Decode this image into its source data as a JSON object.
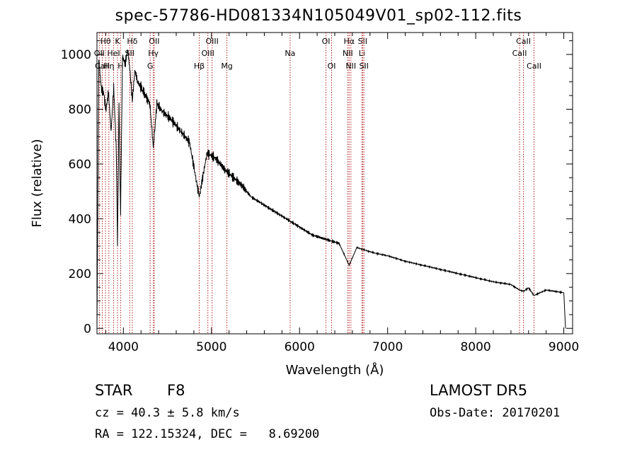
{
  "chart_data": {
    "type": "line",
    "title": "spec-57786-HD081334N105049V01_sp02-112.fits",
    "xlabel": "Wavelength (Å)",
    "ylabel": "Flux (relative)",
    "xlim": [
      3700,
      9100
    ],
    "ylim": [
      -20,
      1080
    ],
    "xticks": [
      4000,
      5000,
      6000,
      7000,
      8000,
      9000
    ],
    "yticks": [
      0,
      200,
      400,
      600,
      800,
      1000
    ],
    "grid": false,
    "line_color": "#000000",
    "marker_color": "#b22222",
    "series": [
      {
        "x": [
          3700,
          3720,
          3750,
          3780,
          3800,
          3830,
          3860,
          3890,
          3920,
          3933,
          3950,
          3968,
          3990,
          4020,
          4050,
          4080,
          4101,
          4130,
          4160,
          4200,
          4250,
          4300,
          4340,
          4380,
          4450,
          4550,
          4650,
          4750,
          4861,
          4950,
          5050,
          5150,
          5250,
          5350,
          5450,
          5550,
          5650,
          5750,
          5850,
          5950,
          6050,
          6150,
          6250,
          6350,
          6450,
          6563,
          6650,
          6750,
          6850,
          7000,
          7200,
          7400,
          7600,
          7800,
          8000,
          8200,
          8400,
          8498,
          8542,
          8600,
          8662,
          8800,
          9000,
          9020
        ],
        "y": [
          0,
          980,
          880,
          850,
          800,
          860,
          720,
          880,
          640,
          300,
          820,
          420,
          1000,
          960,
          1020,
          920,
          830,
          940,
          900,
          880,
          850,
          820,
          660,
          820,
          790,
          760,
          720,
          680,
          480,
          640,
          620,
          580,
          550,
          520,
          480,
          460,
          440,
          420,
          400,
          380,
          360,
          340,
          330,
          320,
          310,
          230,
          295,
          285,
          275,
          265,
          245,
          230,
          215,
          200,
          185,
          170,
          160,
          140,
          135,
          148,
          120,
          140,
          130,
          0
        ]
      }
    ],
    "line_markers": [
      {
        "name": "Hθ",
        "wave": 3797,
        "row": 0
      },
      {
        "name": "K",
        "wave": 3933,
        "row": 0
      },
      {
        "name": "Hδ",
        "wave": 4101,
        "row": 0
      },
      {
        "name": "OII",
        "wave": 4350,
        "row": 0
      },
      {
        "name": "OIII",
        "wave": 5007,
        "row": 0
      },
      {
        "name": "OI",
        "wave": 6300,
        "row": 0
      },
      {
        "name": "Hα",
        "wave": 6563,
        "row": 0
      },
      {
        "name": "SII",
        "wave": 6716,
        "row": 0
      },
      {
        "name": "CaII",
        "wave": 8542,
        "row": 0
      },
      {
        "name": "OII",
        "wave": 3727,
        "row": 1
      },
      {
        "name": "HeI",
        "wave": 3889,
        "row": 1
      },
      {
        "name": "SII",
        "wave": 4072,
        "row": 1
      },
      {
        "name": "Hγ",
        "wave": 4340,
        "row": 1
      },
      {
        "name": "OIII",
        "wave": 4959,
        "row": 1
      },
      {
        "name": "Na",
        "wave": 5893,
        "row": 1
      },
      {
        "name": "NII",
        "wave": 6548,
        "row": 1
      },
      {
        "name": "Li",
        "wave": 6708,
        "row": 1
      },
      {
        "name": "CaII",
        "wave": 8498,
        "row": 1
      },
      {
        "name": "CaII",
        "wave": 3760,
        "row": 2
      },
      {
        "name": "Hη",
        "wave": 3835,
        "row": 2
      },
      {
        "name": "H",
        "wave": 3968,
        "row": 2
      },
      {
        "name": "G",
        "wave": 4304,
        "row": 2
      },
      {
        "name": "Hβ",
        "wave": 4861,
        "row": 2
      },
      {
        "name": "Mg",
        "wave": 5175,
        "row": 2
      },
      {
        "name": "OI",
        "wave": 6364,
        "row": 2
      },
      {
        "name": "NII",
        "wave": 6583,
        "row": 2
      },
      {
        "name": "SII",
        "wave": 6731,
        "row": 2
      },
      {
        "name": "CaII",
        "wave": 8662,
        "row": 2
      }
    ]
  },
  "info": {
    "object_class": "STAR",
    "subclass": "F8",
    "survey": "LAMOST DR5",
    "redshift": "cz = 40.3 ± 5.8 km/s",
    "obs_date": "Obs-Date: 20170201",
    "coords": "RA = 122.15324, DEC =   8.69200"
  }
}
